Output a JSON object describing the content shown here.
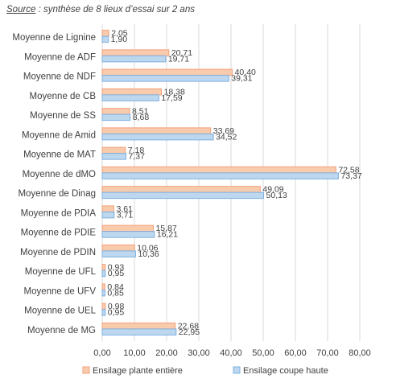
{
  "caption": {
    "source_word": "Source",
    "text": " : synthèse de 8 lieux d’essai sur 2 ans"
  },
  "colors": {
    "series1_fill": "#f8cbad",
    "series1_stroke": "#f4a07a",
    "series2_fill": "#bdd7ee",
    "series2_stroke": "#7fb0e0",
    "grid": "#d9d9d9",
    "axis": "#bfbfbf"
  },
  "chart_data": {
    "type": "bar",
    "orientation": "horizontal",
    "categories": [
      "Moyenne de Lignine",
      "Moyenne de ADF",
      "Moyenne de NDF",
      "Moyenne de CB",
      "Moyenne de SS",
      "Moyenne de Amid",
      "Moyenne de MAT",
      "Moyenne de dMO",
      "Moyenne de Dinag",
      "Moyenne de PDIA",
      "Moyenne de PDIE",
      "Moyenne de PDIN",
      "Moyenne de UFL",
      "Moyenne de UFV",
      "Moyenne de UEL",
      "Moyenne de MG"
    ],
    "series": [
      {
        "name": "Ensilage plante entière",
        "values": [
          2.05,
          20.71,
          40.4,
          18.38,
          8.51,
          33.69,
          7.18,
          72.58,
          49.09,
          3.61,
          15.87,
          10.06,
          0.93,
          0.84,
          0.98,
          22.68
        ],
        "labels": [
          "2,05",
          "20,71",
          "40,40",
          "18,38",
          "8,51",
          "33,69",
          "7,18",
          "72,58",
          "49,09",
          "3,61",
          "15,87",
          "10,06",
          "0,93",
          "0,84",
          "0,98",
          "22,68"
        ]
      },
      {
        "name": "Ensilage coupe haute",
        "values": [
          1.9,
          19.71,
          39.31,
          17.59,
          8.68,
          34.52,
          7.37,
          73.37,
          50.13,
          3.71,
          16.21,
          10.36,
          0.95,
          0.85,
          0.95,
          22.95
        ],
        "labels": [
          "1,90",
          "19,71",
          "39,31",
          "17,59",
          "8,68",
          "34,52",
          "7,37",
          "73,37",
          "50,13",
          "3,71",
          "16,21",
          "10,36",
          "0,95",
          "0,85",
          "0,95",
          "22,95"
        ]
      }
    ],
    "xlim": [
      0,
      80
    ],
    "x_ticks": [
      0,
      10,
      20,
      30,
      40,
      50,
      60,
      70,
      80
    ],
    "x_tick_labels": [
      "0,00",
      "10,00",
      "20,00",
      "30,00",
      "40,00",
      "50,00",
      "60,00",
      "70,00",
      "80,00"
    ],
    "grid": true,
    "legend_position": "bottom"
  }
}
